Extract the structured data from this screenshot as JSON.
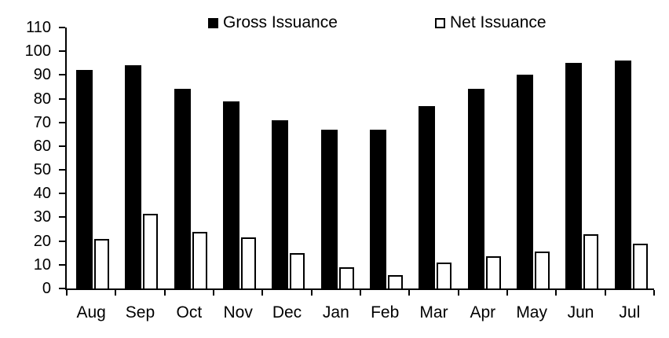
{
  "chart_data": {
    "type": "bar",
    "title": "",
    "xlabel": "",
    "ylabel": "",
    "categories": [
      "Aug",
      "Sep",
      "Oct",
      "Nov",
      "Dec",
      "Jan",
      "Feb",
      "Mar",
      "Apr",
      "May",
      "Jun",
      "Jul"
    ],
    "series": [
      {
        "name": "Gross Issuance",
        "values": [
          92,
          94,
          84,
          79,
          71,
          67,
          67,
          77,
          84,
          90,
          95,
          96
        ]
      },
      {
        "name": "Net Issuance",
        "values": [
          21,
          31.5,
          24,
          21.5,
          15,
          9,
          5.5,
          11,
          13.5,
          15.5,
          23,
          19
        ]
      }
    ],
    "ylim": [
      0,
      110
    ],
    "yticks": [
      0,
      10,
      20,
      30,
      40,
      50,
      60,
      70,
      80,
      90,
      100,
      110
    ],
    "grid": false,
    "legend_position": "top"
  },
  "colors": {
    "background": "#ffffff",
    "axis": "#000000",
    "text": "#000000",
    "gross_fill": "#000000",
    "net_fill": "#ffffff",
    "net_border": "#000000"
  }
}
